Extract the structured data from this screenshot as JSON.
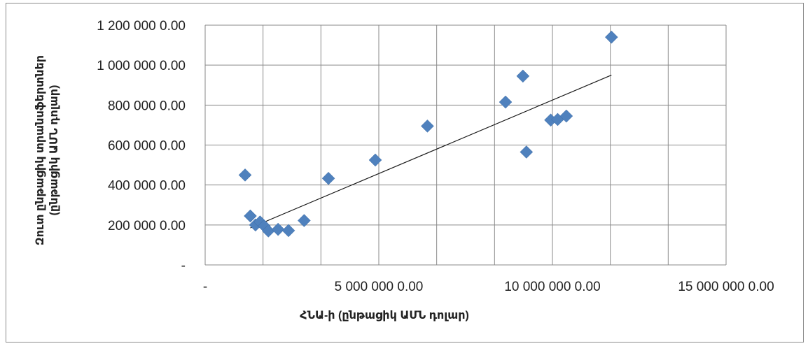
{
  "chart_data": {
    "type": "scatter",
    "title": "",
    "xlabel": "ՀՆԱ-ի (ընթացիկ ԱՄՆ դոլար)",
    "ylabel_line1": "Զուտ ընթացիկ տրանսֆերտներ",
    "ylabel_line2": "(ընթացիկ ԱՄՆ դոլար)",
    "xlim": [
      0,
      15000000
    ],
    "ylim": [
      0,
      1200000
    ],
    "x_ticks": [
      {
        "value": 0,
        "label": "-"
      },
      {
        "value": 5000000,
        "label": "5 000 000 0.00"
      },
      {
        "value": 10000000,
        "label": "10 000 000 0.00"
      },
      {
        "value": 15000000,
        "label": "15 000 000 0.00"
      }
    ],
    "y_ticks": [
      {
        "value": 0,
        "label": "-"
      },
      {
        "value": 200000,
        "label": "200 000 0.00"
      },
      {
        "value": 400000,
        "label": "400 000 0.00"
      },
      {
        "value": 600000,
        "label": "600 000 0.00"
      },
      {
        "value": 800000,
        "label": "800 000 0.00"
      },
      {
        "value": 1000000,
        "label": "1 000 000 0.00"
      },
      {
        "value": 1200000,
        "label": "1 200 000 0.00"
      }
    ],
    "grid": {
      "vertical": true,
      "horizontal": true
    },
    "marker_color": "#4f81bd",
    "trendline_color": "#1a1a1a",
    "points": [
      {
        "x": 1150000,
        "y": 450000
      },
      {
        "x": 1300000,
        "y": 245000
      },
      {
        "x": 1450000,
        "y": 200000
      },
      {
        "x": 1580000,
        "y": 215000
      },
      {
        "x": 1700000,
        "y": 195000
      },
      {
        "x": 1820000,
        "y": 170000
      },
      {
        "x": 2100000,
        "y": 178000
      },
      {
        "x": 2400000,
        "y": 172000
      },
      {
        "x": 2850000,
        "y": 222000
      },
      {
        "x": 3550000,
        "y": 433000
      },
      {
        "x": 4900000,
        "y": 525000
      },
      {
        "x": 6400000,
        "y": 695000
      },
      {
        "x": 8650000,
        "y": 815000
      },
      {
        "x": 9150000,
        "y": 945000
      },
      {
        "x": 9250000,
        "y": 565000
      },
      {
        "x": 9950000,
        "y": 725000
      },
      {
        "x": 10150000,
        "y": 728000
      },
      {
        "x": 10400000,
        "y": 745000
      },
      {
        "x": 11700000,
        "y": 1140000
      }
    ],
    "trendline": {
      "x": [
        1300000,
        11700000
      ],
      "y": [
        185000,
        950000
      ]
    }
  }
}
